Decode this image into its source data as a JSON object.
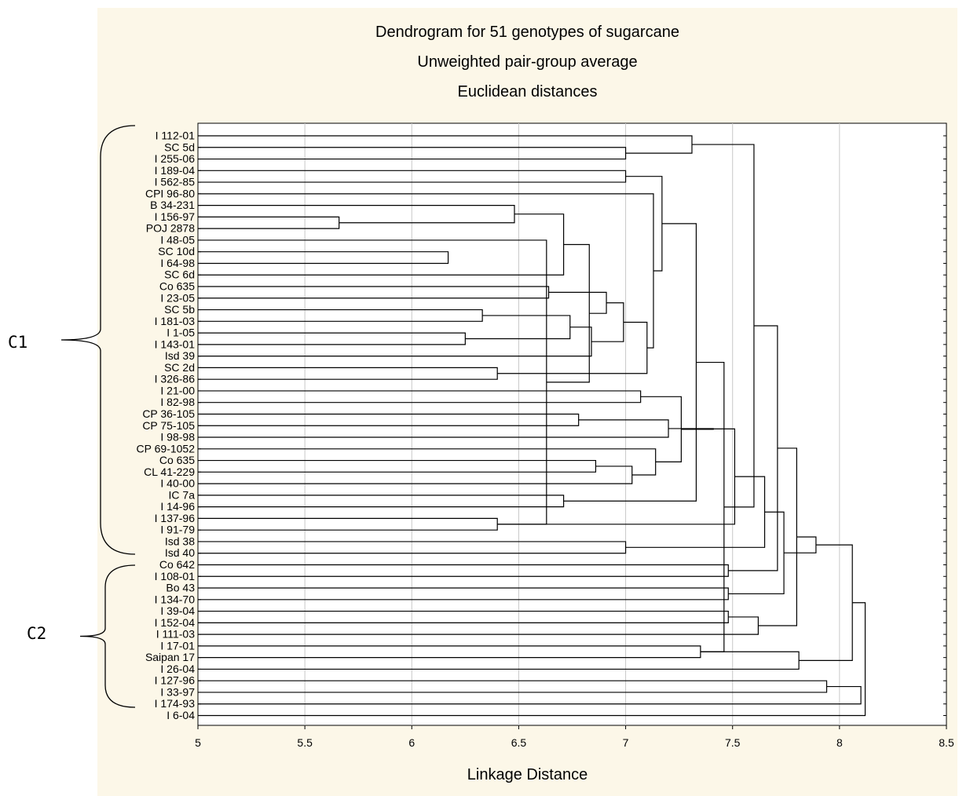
{
  "chart_data": {
    "type": "dendrogram",
    "title": "Dendrogram for 51 genotypes of sugarcane",
    "subtitle_1": "Unweighted pair-group average",
    "subtitle_2": "Euclidean distances",
    "xlabel": "Linkage Distance",
    "xlim": [
      5,
      8.5
    ],
    "xticks": [
      "5",
      "5.5",
      "6",
      "6.5",
      "7",
      "7.5",
      "8",
      "8.5"
    ],
    "grid": "vertical",
    "clusters": [
      {
        "label": "C1",
        "from": "I 112-01",
        "to": "Isd 40"
      },
      {
        "label": "C2",
        "from": "Co 642",
        "to": "I 174-93"
      }
    ],
    "leaves": [
      "I 112-01",
      "SC 5d",
      "I 255-06",
      "I 189-04",
      "I 562-85",
      "CPI 96-80",
      "B 34-231",
      "I 156-97",
      "POJ 2878",
      "I 48-05",
      "SC 10d",
      "I 64-98",
      "SC 6d",
      "Co 635",
      "I 23-05",
      "SC 5b",
      "I 181-03",
      "I 1-05",
      "I 143-01",
      "Isd 39",
      "SC 2d",
      "I 326-86",
      "I 21-00",
      "I 82-98",
      "CP 36-105",
      "CP 75-105",
      "I 98-98",
      "CP 69-1052",
      "Co 635",
      "CL 41-229",
      "I 40-00",
      "IC 7a",
      "I 14-96",
      "I 137-96",
      "I 91-79",
      "Isd 38",
      "Isd 40",
      "Co 642",
      "I 108-01",
      "Bo 43",
      "I 134-70",
      "I 39-04",
      "I 152-04",
      "I 111-03",
      "I 17-01",
      "Saipan 17",
      "I 26-04",
      "I 127-96",
      "I 33-97",
      "I 174-93",
      "I 6-04"
    ],
    "merges": [
      {
        "a": 7,
        "b": 8,
        "height": 5.66
      },
      {
        "a": 10,
        "b": 11,
        "height": 6.17
      },
      {
        "a": 17,
        "b": 18,
        "height": 6.25
      },
      {
        "a": 15,
        "b": 16,
        "height": 6.33
      },
      {
        "a": 20,
        "b": 21,
        "height": 6.4
      },
      {
        "a": 33,
        "b": 34,
        "height": 6.4
      },
      {
        "a": 6,
        "b": 51,
        "height": 6.48
      },
      {
        "a": 13,
        "b": 14,
        "height": 6.64
      },
      {
        "a": 57,
        "b": 12,
        "height": 6.71
      },
      {
        "a": 31,
        "b": 32,
        "height": 6.71
      },
      {
        "a": 56,
        "b": 9,
        "height": 6.63
      },
      {
        "a": 54,
        "b": 53,
        "height": 6.74
      },
      {
        "a": 24,
        "b": 25,
        "height": 6.78
      },
      {
        "a": 62,
        "b": 19,
        "height": 6.84
      },
      {
        "a": 61,
        "b": 59,
        "height": 6.83
      },
      {
        "a": 28,
        "b": 29,
        "height": 6.86
      },
      {
        "a": 65,
        "b": 58,
        "height": 6.91
      },
      {
        "a": 1,
        "b": 2,
        "height": 7.0
      },
      {
        "a": 3,
        "b": 4,
        "height": 7.0
      },
      {
        "a": 35,
        "b": 36,
        "height": 7.0
      },
      {
        "a": 67,
        "b": 64,
        "height": 6.99
      },
      {
        "a": 66,
        "b": 30,
        "height": 7.03
      },
      {
        "a": 22,
        "b": 23,
        "height": 7.07
      },
      {
        "a": 71,
        "b": 55,
        "height": 7.1
      },
      {
        "a": 74,
        "b": 5,
        "height": 7.13
      },
      {
        "a": 27,
        "b": 72,
        "height": 7.14
      },
      {
        "a": 75,
        "b": 69,
        "height": 7.17
      },
      {
        "a": 63,
        "b": 26,
        "height": 7.2
      },
      {
        "a": 76,
        "b": 73,
        "height": 7.26
      },
      {
        "a": 0,
        "b": 68,
        "height": 7.31
      },
      {
        "a": 77,
        "b": 60,
        "height": 7.33
      },
      {
        "a": 44,
        "b": 45,
        "height": 7.35
      },
      {
        "a": 79,
        "b": 78,
        "height": 7.41
      },
      {
        "a": 82,
        "b": 81,
        "height": 7.46
      },
      {
        "a": 37,
        "b": 38,
        "height": 7.48
      },
      {
        "a": 39,
        "b": 40,
        "height": 7.48
      },
      {
        "a": 41,
        "b": 42,
        "height": 7.48
      },
      {
        "a": 83,
        "b": 56,
        "height": 7.51
      },
      {
        "a": 84,
        "b": 80,
        "height": 7.6
      },
      {
        "a": 87,
        "b": 43,
        "height": 7.62
      },
      {
        "a": 88,
        "b": 70,
        "height": 7.65
      },
      {
        "a": 89,
        "b": 85,
        "height": 7.71
      },
      {
        "a": 91,
        "b": 86,
        "height": 7.74
      },
      {
        "a": 92,
        "b": 90,
        "height": 7.8
      },
      {
        "a": 82,
        "b": 46,
        "height": 7.81
      },
      {
        "a": 93,
        "b": 94,
        "height": 7.89
      },
      {
        "a": 47,
        "b": 48,
        "height": 7.94
      },
      {
        "a": 95,
        "b": 96,
        "height": 8.06
      },
      {
        "a": 97,
        "b": 49,
        "height": 8.1
      },
      {
        "a": 98,
        "b": 50,
        "height": 8.12
      }
    ]
  }
}
